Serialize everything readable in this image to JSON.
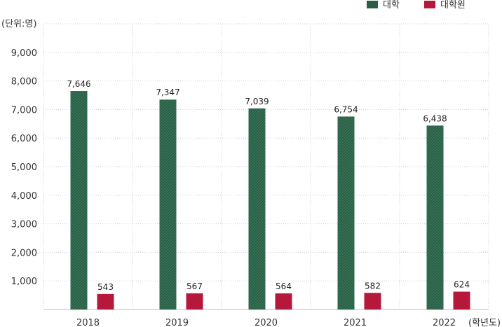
{
  "chart_data": {
    "type": "bar",
    "title": "",
    "y_unit_label": "(단위:명)",
    "x_unit_label": "(학년도)",
    "categories": [
      "2018",
      "2019",
      "2020",
      "2021",
      "2022"
    ],
    "series": [
      {
        "name": "대학",
        "color": "#2a5e46",
        "values": [
          7646,
          7347,
          7039,
          6754,
          6438
        ],
        "value_labels": [
          "7,646",
          "7,347",
          "7,039",
          "6,754",
          "6,438"
        ]
      },
      {
        "name": "대학원",
        "color": "#b5183a",
        "values": [
          543,
          567,
          564,
          582,
          624
        ],
        "value_labels": [
          "543",
          "567",
          "564",
          "582",
          "624"
        ]
      }
    ],
    "ylim": [
      0,
      10000
    ],
    "y_ticks": [
      {
        "value": 1000,
        "label": "1,000"
      },
      {
        "value": 2000,
        "label": "2,000"
      },
      {
        "value": 3000,
        "label": "3,000"
      },
      {
        "value": 4000,
        "label": "4,000"
      },
      {
        "value": 5000,
        "label": "5,000"
      },
      {
        "value": 6000,
        "label": "6,000"
      },
      {
        "value": 7000,
        "label": "7,000"
      },
      {
        "value": 8000,
        "label": "8,000"
      },
      {
        "value": 9000,
        "label": "9,000"
      }
    ],
    "grid": "dotted",
    "legend_position": "top-right"
  }
}
